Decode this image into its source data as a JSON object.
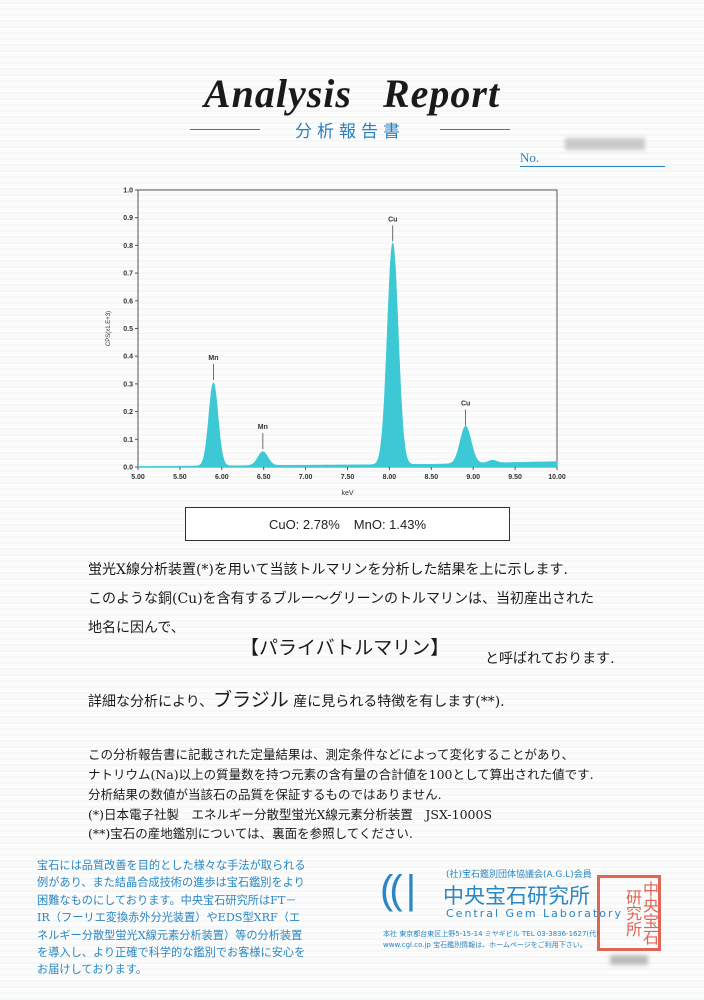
{
  "header": {
    "title": "Analysis  Report",
    "subtitle": "分析報告書",
    "no_label": "No."
  },
  "chart_data": {
    "type": "area",
    "xlabel": "keV",
    "ylabel": "CPS(x1.E+3)",
    "xlim": [
      5.0,
      10.0
    ],
    "ylim": [
      0.0,
      1.0
    ],
    "xticks": [
      "5.00",
      "5.50",
      "6.00",
      "6.50",
      "7.00",
      "7.50",
      "8.00",
      "8.50",
      "9.00",
      "9.50",
      "10.00"
    ],
    "yticks": [
      "0.0",
      "0.1",
      "0.2",
      "0.3",
      "0.4",
      "0.5",
      "0.6",
      "0.7",
      "0.8",
      "0.9",
      "1.0"
    ],
    "color": "#3cc8d4",
    "peaks": [
      {
        "label": "Mn",
        "energy": 5.9,
        "height": 0.3,
        "sigma": 0.055
      },
      {
        "label": "Mn",
        "energy": 6.49,
        "height": 0.05,
        "sigma": 0.06
      },
      {
        "label": "Cu",
        "energy": 8.04,
        "height": 0.8,
        "sigma": 0.065
      },
      {
        "label": "Cu",
        "energy": 8.91,
        "height": 0.135,
        "sigma": 0.065
      },
      {
        "label": "",
        "energy": 9.23,
        "height": 0.01,
        "sigma": 0.05
      }
    ],
    "background": [
      [
        5.0,
        0.002
      ],
      [
        8.5,
        0.01
      ],
      [
        10.0,
        0.02
      ]
    ]
  },
  "result": {
    "cuo": "CuO: 2.78%",
    "mno": "MnO: 1.43%"
  },
  "body": {
    "line1": "蛍光X線分析装置(*)を用いて当該トルマリンを分析した結果を上に示します.",
    "line2": "このような銅(Cu)を含有するブルー～グリーンのトルマリンは、当初産出された",
    "line3": "地名に因んで、",
    "name": "【パライバトルマリン】",
    "called": "と呼ばれております.",
    "line5a": "詳細な分析により、",
    "origin": "ブラジル",
    "line5b": "産に見られる特徴を有します(**)."
  },
  "notes": [
    "この分析報告書に記載された定量結果は、測定条件などによって変化することがあり、",
    "ナトリウム(Na)以上の質量数を持つ元素の含有量の合計値を100として算出された値です.",
    "分析結果の数値が当該石の品質を保証するものではありません.",
    "(*)日本電子社製　エネルギー分散型蛍光X線元素分析装置　JSX-1000S",
    "(**)宝石の産地鑑別については、裏面を参照してください."
  ],
  "footer": {
    "text": "宝石には品質改善を目的とした様々な手法が取られる例があり、また結晶合成技術の進歩は宝石鑑別をより困難なものにしております。中央宝石研究所はFT－IR（フーリエ変換赤外分光装置）やEDS型XRF（エネルギー分散型蛍光X線元素分析装置）等の分析装置を導入し、より正確で科学的な鑑別でお客様に安心をお届けしております。",
    "logo": "CGL",
    "agl": "(社)宝石鑑別団体協議会(A.G.L)会員",
    "name_jp": "中央宝石研究所",
    "name_en": "Central Gem Laboratory",
    "address": "本社 東京都台東区上野5-15-14 ミヤギビル TEL 03-3836-1627(代)",
    "web": "www.cgl.co.jp 宝石鑑別情報は、ホームページをご利用下さい。",
    "seal": "中央宝石研究所"
  }
}
